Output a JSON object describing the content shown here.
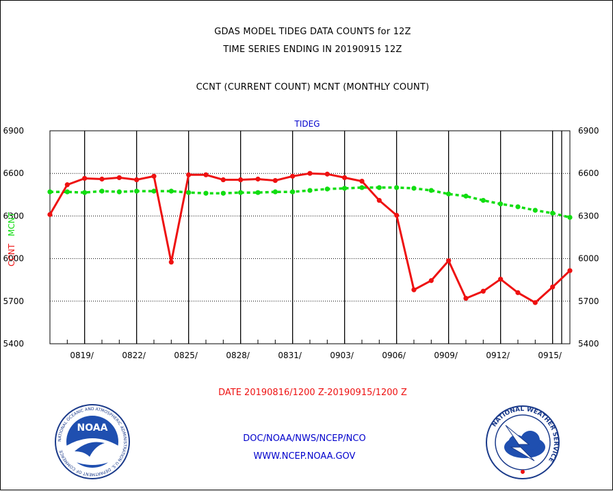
{
  "header": {
    "title_line1": "GDAS MODEL TIDEG DATA COUNTS for 12Z",
    "title_line2": "TIME SERIES ENDING IN 20190915 12Z",
    "subtitle": "CCNT (CURRENT COUNT) MCNT (MONTHLY COUNT)"
  },
  "footer": {
    "date_range": "DATE 20190816/1200 Z-20190915/1200 Z",
    "org": "DOC/NOAA/NWS/NCEP/NCO",
    "url": "WWW.NCEP.NOAA.GOV"
  },
  "logos": {
    "noaa_text": "NOAA",
    "noaa_ring": "NATIONAL OCEANIC AND ATMOSPHERIC ADMINISTRATION  U.S. DEPARTMENT OF COMMERCE",
    "nws_ring": "NATIONAL WEATHER SERVICE"
  },
  "colors": {
    "ccnt": "#ee1111",
    "mcnt": "#11dd11",
    "axis_title": "#0000cc"
  },
  "chart_data": {
    "type": "line",
    "title": "TIDEG",
    "ylabel_ccnt": "CCNT",
    "ylabel_mcnt": "MCNT",
    "ylim": [
      5400,
      6900
    ],
    "yticks": [
      5400,
      5700,
      6000,
      6300,
      6600,
      6900
    ],
    "x_start": "0816",
    "x_end": "0915",
    "x_tick_labels": [
      "0819/",
      "0822/",
      "0825/",
      "0828/",
      "0831/",
      "0903/",
      "0906/",
      "0909/",
      "0912/",
      "0915/"
    ],
    "grid": true,
    "series": [
      {
        "name": "CCNT",
        "color": "#ee1111",
        "values": [
          6310,
          6520,
          6565,
          6560,
          6570,
          6555,
          6580,
          5975,
          6590,
          6590,
          6555,
          6555,
          6560,
          6550,
          6580,
          6600,
          6595,
          6570,
          6545,
          6410,
          6305,
          5780,
          5845,
          5985,
          5720,
          5770,
          5855,
          5760,
          5690,
          5800,
          5915
        ]
      },
      {
        "name": "MCNT",
        "color": "#11dd11",
        "values": [
          6470,
          6470,
          6465,
          6475,
          6470,
          6475,
          6475,
          6475,
          6465,
          6460,
          6460,
          6465,
          6465,
          6470,
          6470,
          6480,
          6490,
          6495,
          6500,
          6500,
          6500,
          6495,
          6480,
          6455,
          6440,
          6410,
          6385,
          6365,
          6340,
          6320,
          6290
        ]
      }
    ]
  }
}
